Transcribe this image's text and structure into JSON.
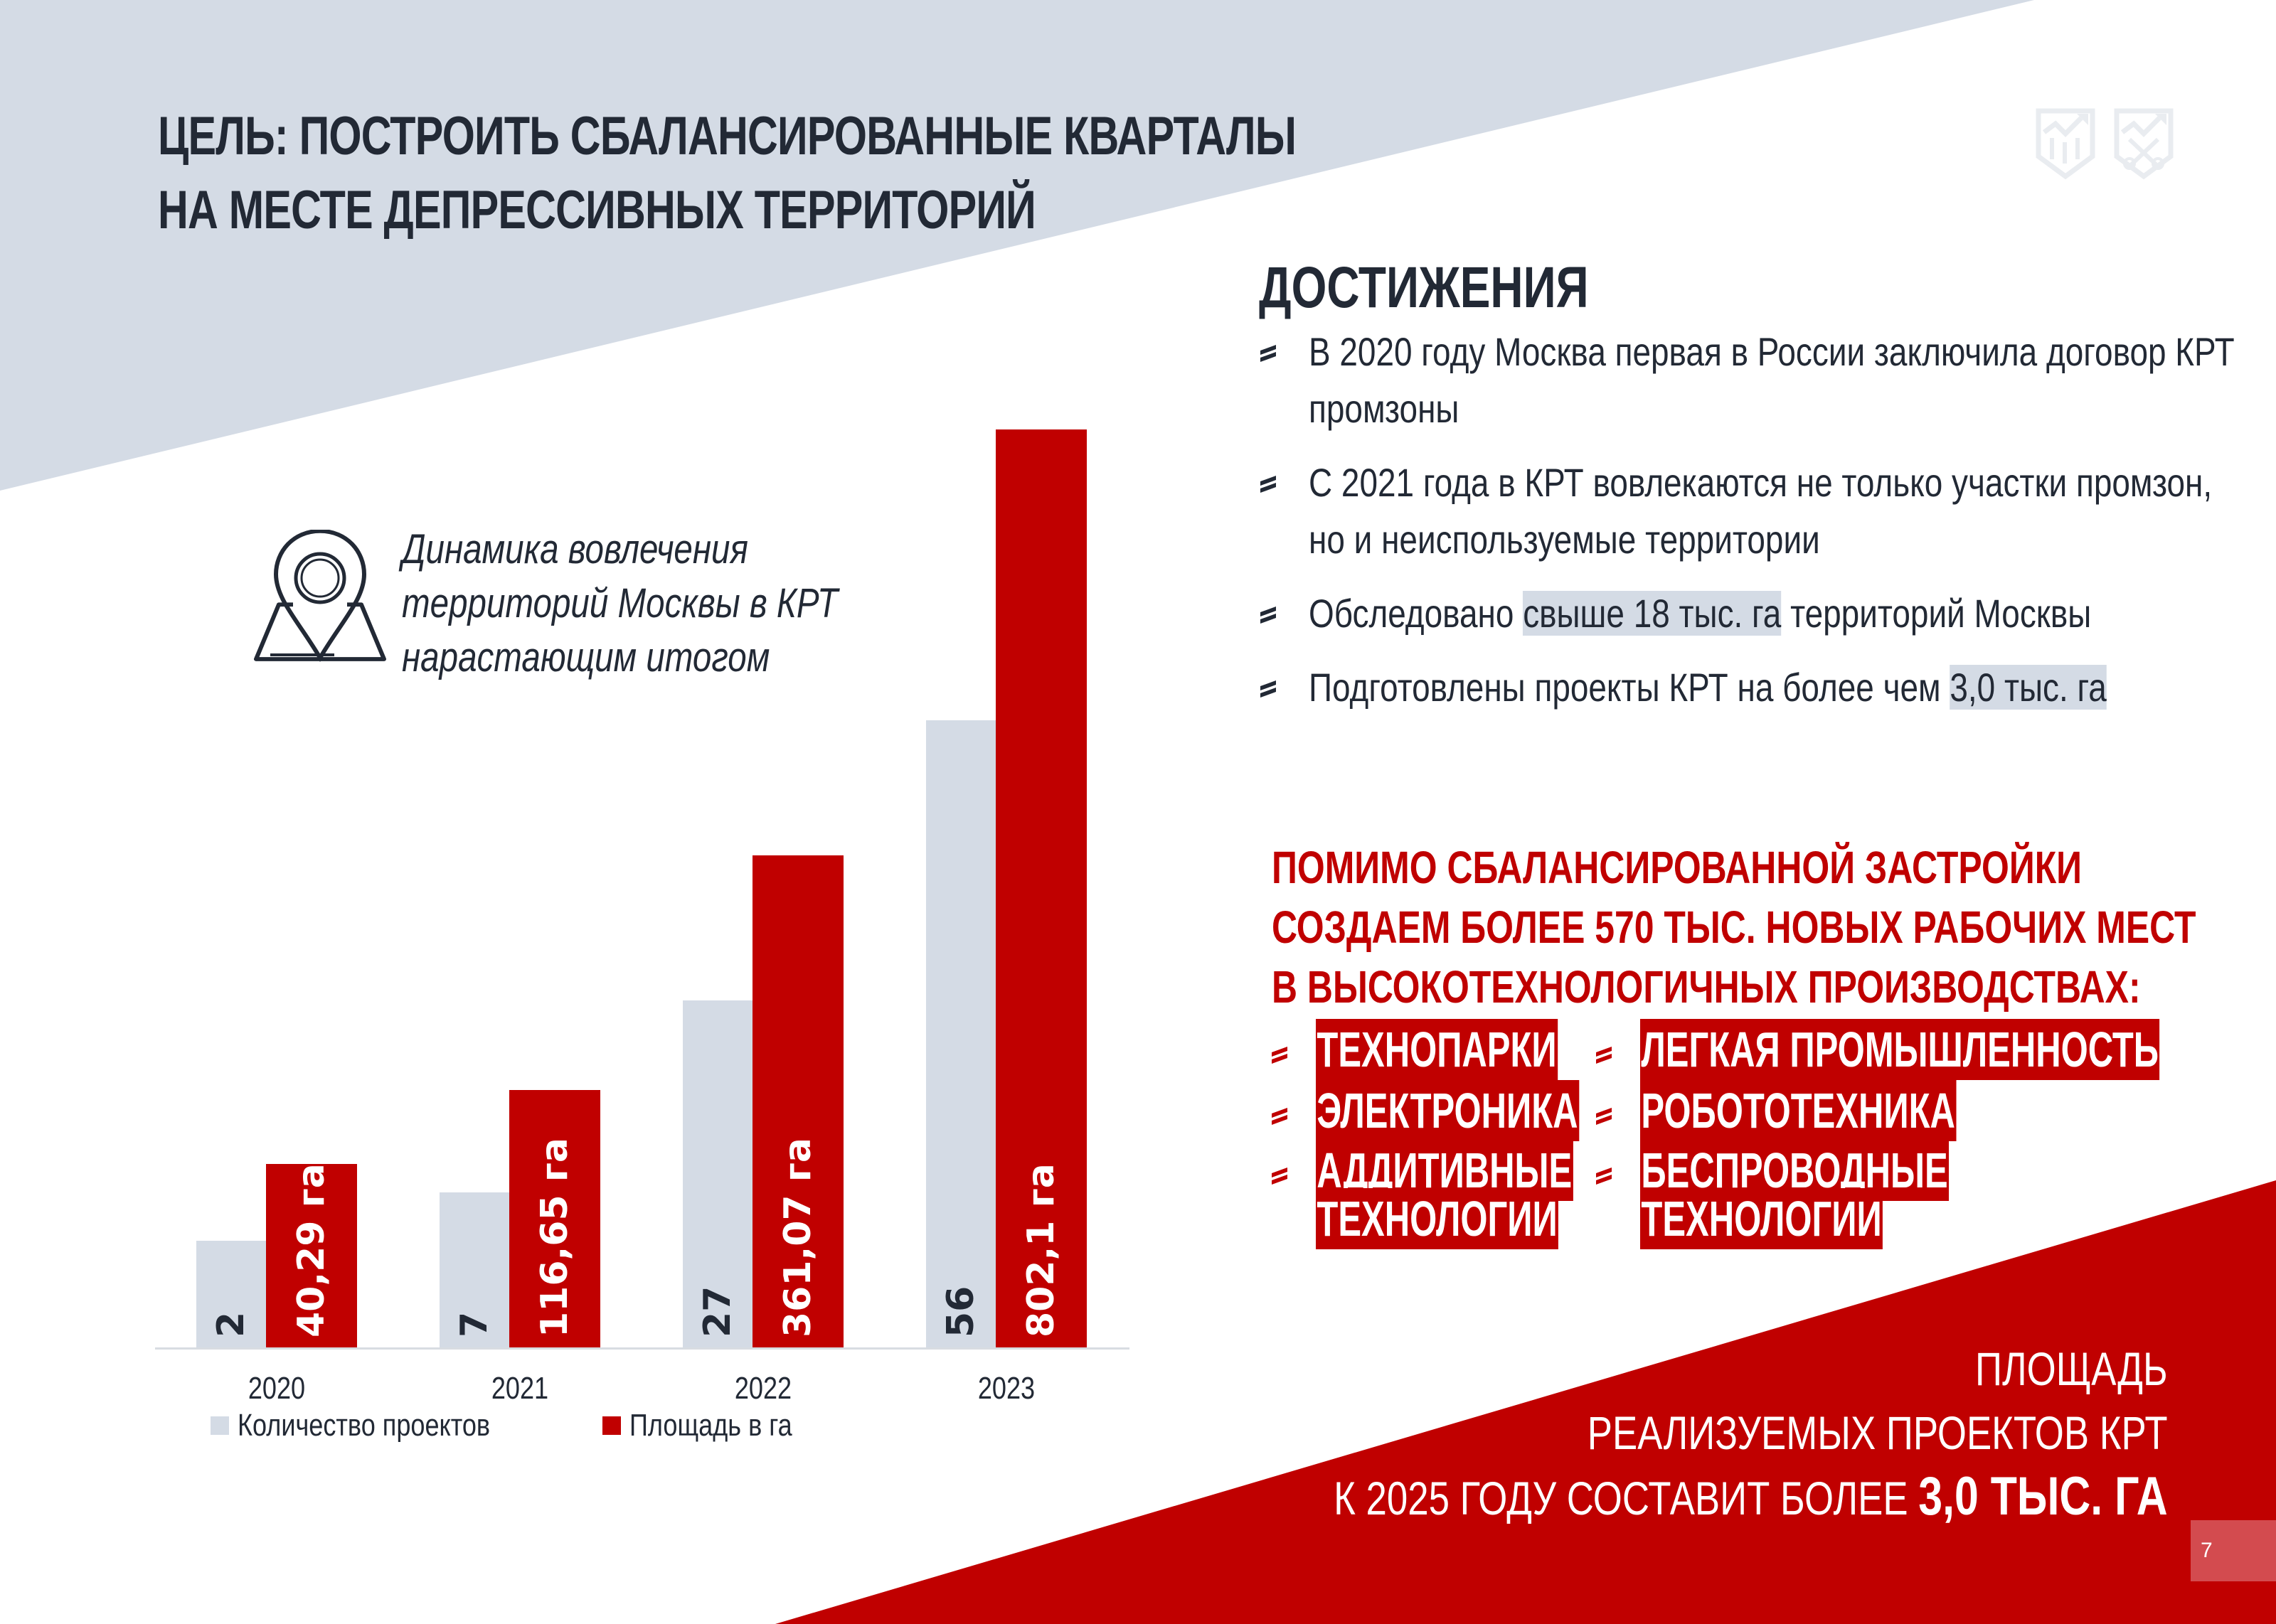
{
  "slide": {
    "title_line1": "ЦЕЛЬ: ПОСТРОИТЬ СБАЛАНСИРОВАННЫЕ КВАРТАЛЫ",
    "title_line2": "НА МЕСТЕ ДЕПРЕССИВНЫХ ТЕРРИТОРИЙ",
    "page_number": "7",
    "colors": {
      "accent_red": "#c00000",
      "light_gray": "#d4dbe5",
      "dark_text": "#222935",
      "page_badge": "#d34b4f"
    },
    "logos": [
      "shield-chart-logo",
      "shield-keys-logo"
    ]
  },
  "chart_caption": {
    "icon": "map-pin-icon",
    "line1": "Динамика вовлечения",
    "line2": "территорий Москвы в КРТ",
    "line3": "нарастающим итогом"
  },
  "chart_data": {
    "type": "bar",
    "title": "Динамика вовлечения территорий Москвы в КРТ нарастающим итогом",
    "categories": [
      "2020",
      "2021",
      "2022",
      "2023"
    ],
    "series": [
      {
        "name": "Количество проектов",
        "color": "#d4dbe5",
        "values": [
          2,
          7,
          27,
          56
        ],
        "labels": [
          "2",
          "7",
          "27",
          "56"
        ]
      },
      {
        "name": "Площадь в га",
        "color": "#c00000",
        "values": [
          40.29,
          116.65,
          361.07,
          802.1
        ],
        "labels": [
          "40,29 га",
          "116,65 га",
          "361,07 га",
          "802,1 га"
        ]
      }
    ],
    "xlabel": "",
    "ylabel": "",
    "grid": false,
    "legend_position": "bottom",
    "data_labels": "rotated-vertical-inside-bar"
  },
  "achievements": {
    "title": "ДОСТИЖЕНИЯ",
    "items": [
      {
        "pre": "В 2020 году Москва первая в России заключила договор КРТ промзоны",
        "hl": "",
        "post": ""
      },
      {
        "pre": "С 2021 года в КРТ вовлекаются не только участки промзон, но и неиспользуемые территории",
        "hl": "",
        "post": ""
      },
      {
        "pre": "Обследовано ",
        "hl": "свыше 18 тыс. га",
        "post": " территорий Москвы"
      },
      {
        "pre": "Подготовлены проекты КРТ на более чем ",
        "hl": "3,0 тыс. га",
        "post": ""
      }
    ]
  },
  "jobs": {
    "line1": "ПОМИМО СБАЛАНСИРОВАННОЙ ЗАСТРОЙКИ",
    "line2": "СОЗДАЕМ БОЛЕЕ 570 ТЫС. НОВЫХ РАБОЧИХ МЕСТ",
    "line3": "В ВЫСОКОТЕХНОЛОГИЧНЫХ ПРОИЗВОДСТВАХ:",
    "tags": [
      {
        "l1": "ТЕХНОПАРКИ",
        "l2": ""
      },
      {
        "l1": "ЛЕГКАЯ ПРОМЫШЛЕННОСТЬ",
        "l2": ""
      },
      {
        "l1": "ЭЛЕКТРОНИКА",
        "l2": ""
      },
      {
        "l1": "РОБОТОТЕХНИКА",
        "l2": ""
      },
      {
        "l1": "АДДИТИВНЫЕ",
        "l2": "ТЕХНОЛОГИИ"
      },
      {
        "l1": "БЕСПРОВОДНЫЕ",
        "l2": "ТЕХНОЛОГИИ"
      }
    ]
  },
  "footer": {
    "line1": "ПЛОЩАДЬ",
    "line2": "РЕАЛИЗУЕМЫХ ПРОЕКТОВ КРТ",
    "line3_pre": "К 2025 ГОДУ СОСТАВИТ БОЛЕЕ ",
    "line3_bold": "3,0 ТЫС. ГА"
  }
}
